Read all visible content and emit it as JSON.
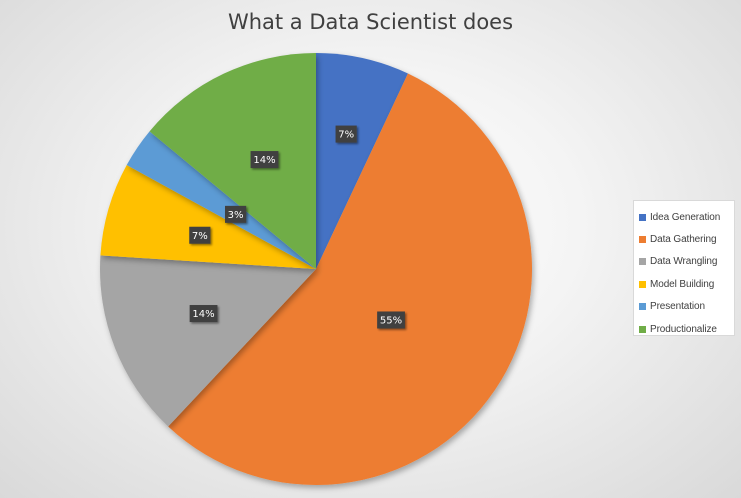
{
  "chart_data": {
    "type": "pie",
    "title": "What a Data Scientist does",
    "categories": [
      "Idea Generation",
      "Data Gathering",
      "Data Wrangling",
      "Model Building",
      "Presentation",
      "Productionalize"
    ],
    "values": [
      7,
      55,
      14,
      7,
      3,
      14
    ],
    "data_labels": [
      "7%",
      "55%",
      "14%",
      "7%",
      "3%",
      "14%"
    ],
    "colors": [
      "#4472C4",
      "#ED7D31",
      "#A5A5A5",
      "#FFC000",
      "#5B9BD5",
      "#70AD47"
    ],
    "legend_position": "right",
    "start_angle_deg": 0,
    "direction": "clockwise"
  }
}
